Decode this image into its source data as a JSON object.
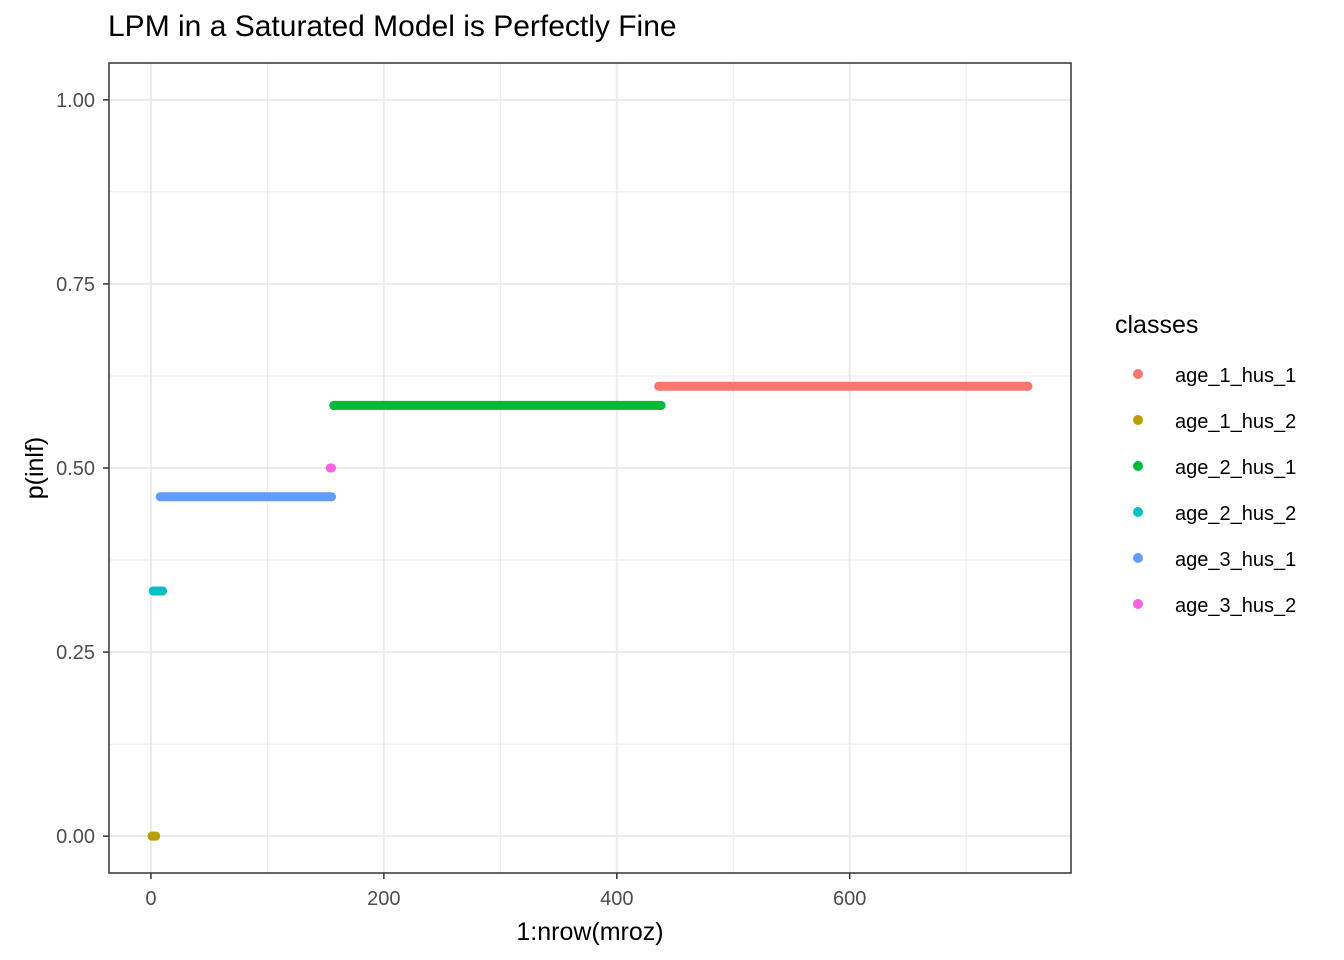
{
  "chart_data": {
    "type": "scatter",
    "title": "LPM in a Saturated Model is Perfectly Fine",
    "xlabel": "1:nrow(mroz)",
    "ylabel": "p(inlf)",
    "xlim": [
      -36,
      790
    ],
    "ylim": [
      -0.05,
      1.05
    ],
    "x_ticks": [
      0,
      200,
      400,
      600
    ],
    "x_tick_labels": [
      "0",
      "200",
      "400",
      "600"
    ],
    "y_ticks": [
      0,
      0.25,
      0.5,
      0.75,
      1.0
    ],
    "y_tick_labels": [
      "0.00",
      "0.25",
      "0.50",
      "0.75",
      "1.00"
    ],
    "grid": true,
    "legend_title": "classes",
    "legend_position": "right",
    "series": [
      {
        "name": "age_1_hus_1",
        "color": "#F8766D",
        "x_start": 436,
        "x_end": 753,
        "y": 0.611
      },
      {
        "name": "age_1_hus_2",
        "color": "#B79F00",
        "x_start": 1,
        "x_end": 4,
        "y": 0.0
      },
      {
        "name": "age_2_hus_1",
        "color": "#00BA38",
        "x_start": 157,
        "x_end": 438,
        "y": 0.585
      },
      {
        "name": "age_2_hus_2",
        "color": "#00BFC4",
        "x_start": 2,
        "x_end": 10,
        "y": 0.333
      },
      {
        "name": "age_3_hus_1",
        "color": "#619CFF",
        "x_start": 8,
        "x_end": 155,
        "y": 0.461
      },
      {
        "name": "age_3_hus_2",
        "color": "#F564E3",
        "x_start": 154,
        "x_end": 155,
        "y": 0.5
      }
    ]
  }
}
